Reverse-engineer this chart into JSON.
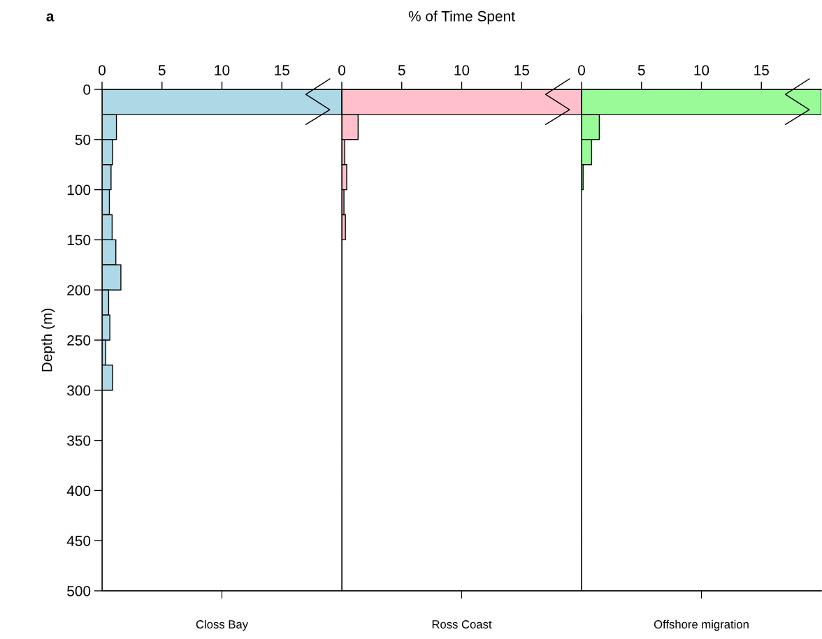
{
  "chart_data": [
    {
      "type": "histogram",
      "orientation": "horizontal",
      "title": "a",
      "annotations": [
        "% of Time Spent"
      ],
      "xlabel": "Closs Bay",
      "ylabel": "Depth (m)",
      "color": "#add8e6",
      "bins": [
        0,
        25,
        50,
        75,
        100,
        125,
        150,
        175,
        200,
        225,
        250,
        275,
        300,
        325,
        350,
        375,
        400,
        425,
        450,
        475,
        500
      ],
      "values": [
        20,
        1.2,
        0.88,
        0.75,
        0.61,
        0.84,
        1.15,
        1.57,
        0.55,
        0.65,
        0.31,
        0.88,
        0,
        0,
        0,
        0,
        0,
        0,
        0,
        0
      ],
      "xlim": [
        0,
        20
      ],
      "xticks": [
        0,
        5,
        10,
        15
      ],
      "ylim": [
        500,
        0
      ],
      "yticks": [
        0,
        50,
        100,
        150,
        200,
        250,
        300,
        350,
        400,
        450,
        500
      ],
      "grid": false
    },
    {
      "type": "histogram",
      "orientation": "horizontal",
      "xlabel": "Ross Coast",
      "color": "#ffc0cb",
      "bins": [
        0,
        25,
        50,
        75,
        100,
        125,
        150,
        175,
        200,
        225,
        250,
        275,
        300,
        325,
        350,
        375,
        400,
        425,
        450,
        475,
        500
      ],
      "values": [
        20,
        1.36,
        0.24,
        0.41,
        0.18,
        0.3,
        0,
        0,
        0,
        0,
        0,
        0,
        0,
        0,
        0,
        0,
        0,
        0,
        0,
        0
      ],
      "xlim": [
        0,
        20
      ],
      "xticks": [
        0,
        5,
        10,
        15
      ],
      "ylim": [
        500,
        0
      ],
      "yticks": [
        0,
        50,
        100,
        150,
        200,
        250,
        300,
        350,
        400,
        450,
        500
      ],
      "tick_labels": "x",
      "grid": false
    },
    {
      "type": "histogram",
      "orientation": "horizontal",
      "xlabel": "Offshore migration",
      "color": "#98fb98",
      "bins": [
        0,
        25,
        50,
        75,
        100,
        125,
        150,
        175,
        200,
        225,
        250,
        275,
        300,
        325,
        350,
        375,
        400,
        425,
        450,
        475,
        500
      ],
      "values": [
        20,
        1.48,
        0.84,
        0.13,
        null,
        null,
        null,
        null,
        null,
        0,
        0,
        0,
        0,
        0,
        0,
        0,
        0,
        0,
        0,
        0
      ],
      "xlim": [
        0,
        20
      ],
      "xticks": [
        0,
        5,
        10,
        15
      ],
      "ylim": [
        500,
        0
      ],
      "yticks": [
        0,
        50,
        100,
        150,
        200,
        250,
        300,
        350,
        400,
        450,
        500
      ],
      "tick_labels": "x",
      "grid": false
    }
  ]
}
